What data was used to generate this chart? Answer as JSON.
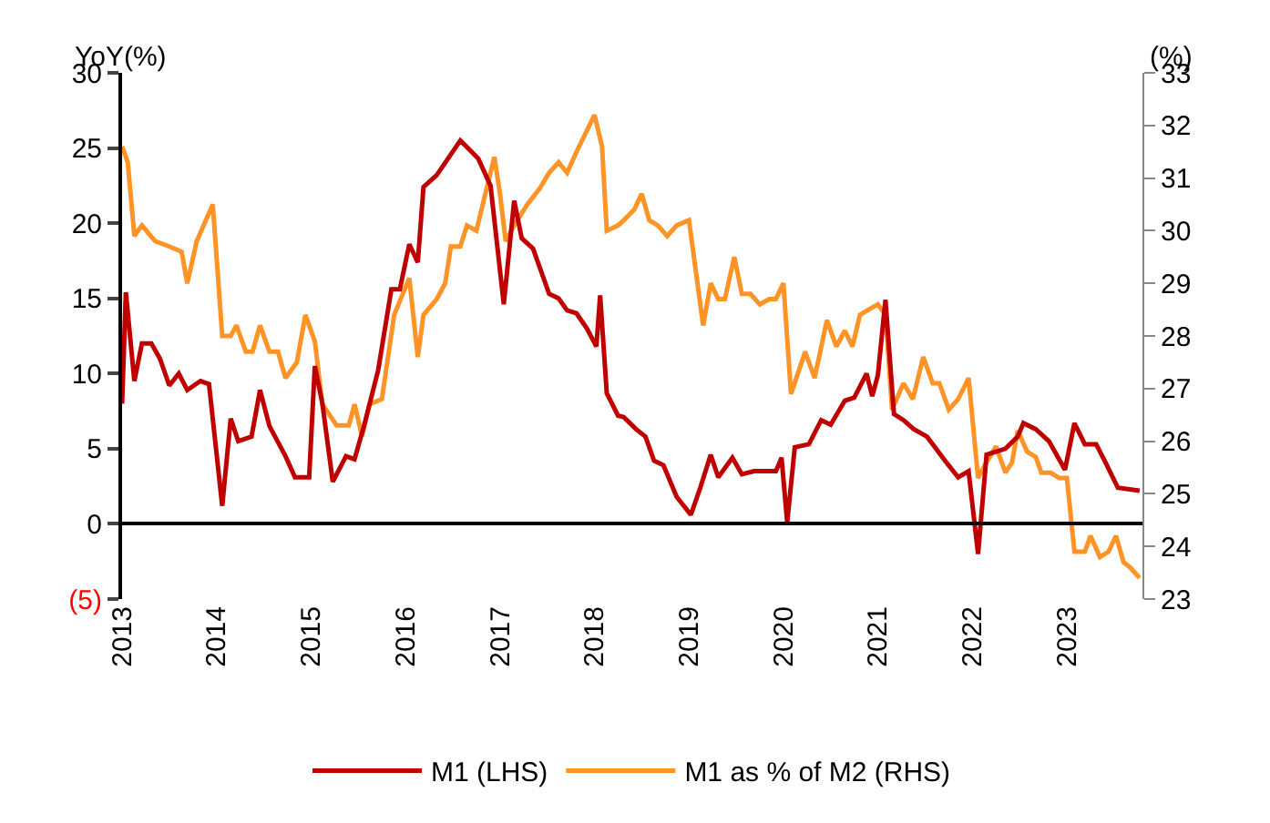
{
  "chart_data": {
    "type": "line",
    "ylabel": "YoY(%)",
    "y2label": "(%)",
    "xlim": [
      2013,
      2023.8
    ],
    "xticks": [
      2013,
      2014,
      2015,
      2016,
      2017,
      2018,
      2019,
      2020,
      2021,
      2022,
      2023
    ],
    "ylim": [
      -5,
      30
    ],
    "yticks": [
      {
        "value": -5,
        "label": "(5)"
      },
      0,
      5,
      10,
      15,
      20,
      25,
      30
    ],
    "y2lim": [
      23,
      33
    ],
    "y2ticks": [
      23,
      24,
      25,
      26,
      27,
      28,
      29,
      30,
      31,
      32,
      33
    ],
    "legend": "bottom",
    "marker": "none",
    "line_style": "solid",
    "series": [
      {
        "name": "M1 (LHS)",
        "color": "#c00000",
        "axis": "y",
        "x": [
          2013.0,
          2013.04,
          2013.13,
          2013.21,
          2013.31,
          2013.4,
          2013.5,
          2013.6,
          2013.69,
          2013.83,
          2013.92,
          2014.06,
          2014.15,
          2014.23,
          2014.37,
          2014.46,
          2014.56,
          2014.73,
          2014.83,
          2014.98,
          2015.04,
          2015.12,
          2015.23,
          2015.37,
          2015.46,
          2015.56,
          2015.71,
          2015.85,
          2015.94,
          2016.04,
          2016.13,
          2016.19,
          2016.33,
          2016.58,
          2016.77,
          2016.9,
          2017.04,
          2017.15,
          2017.23,
          2017.35,
          2017.52,
          2017.62,
          2017.71,
          2017.81,
          2017.92,
          2018.02,
          2018.06,
          2018.13,
          2018.25,
          2018.31,
          2018.44,
          2018.54,
          2018.63,
          2018.73,
          2018.87,
          2019.02,
          2019.12,
          2019.23,
          2019.31,
          2019.46,
          2019.56,
          2019.69,
          2019.92,
          2019.98,
          2020.04,
          2020.12,
          2020.27,
          2020.4,
          2020.5,
          2020.65,
          2020.75,
          2020.88,
          2020.94,
          2021.0,
          2021.08,
          2021.17,
          2021.27,
          2021.38,
          2021.52,
          2021.71,
          2021.85,
          2021.96,
          2022.06,
          2022.15,
          2022.35,
          2022.48,
          2022.54,
          2022.67,
          2022.81,
          2022.98,
          2023.08,
          2023.19,
          2023.31,
          2023.4,
          2023.54,
          2023.77
        ],
        "values": [
          8.0,
          15.4,
          9.5,
          12,
          12,
          11,
          9.2,
          10,
          8.9,
          9.5,
          9.3,
          1.2,
          7.0,
          5.5,
          5.8,
          8.9,
          6.5,
          4.5,
          3.1,
          3.1,
          10.5,
          8,
          2.8,
          4.5,
          4.3,
          6.5,
          10.2,
          15.6,
          15.6,
          18.6,
          17.4,
          22.4,
          23.2,
          25.5,
          24.3,
          22.5,
          14.6,
          21.5,
          19,
          18.3,
          15.3,
          15,
          14.2,
          14,
          13,
          11.8,
          15.2,
          8.7,
          7.2,
          7.1,
          6.3,
          5.8,
          4.2,
          3.9,
          1.8,
          0.6,
          2.4,
          4.6,
          3.1,
          4.4,
          3.3,
          3.5,
          3.5,
          4.4,
          0.1,
          5.1,
          5.3,
          6.9,
          6.6,
          8.2,
          8.4,
          10,
          8.5,
          9.9,
          14.9,
          7.3,
          6.9,
          6.3,
          5.8,
          4.2,
          3.1,
          3.5,
          -2,
          4.6,
          5,
          5.8,
          6.7,
          6.3,
          5.5,
          3.6,
          6.7,
          5.3,
          5.3,
          4.2,
          2.4,
          2.2
        ]
      },
      {
        "name": "M1 as % of M2 (RHS)",
        "color": "#ff9326",
        "axis": "y2",
        "x": [
          2013.0,
          2013.06,
          2013.13,
          2013.21,
          2013.35,
          2013.5,
          2013.63,
          2013.69,
          2013.79,
          2013.96,
          2014.06,
          2014.15,
          2014.21,
          2014.31,
          2014.38,
          2014.46,
          2014.56,
          2014.65,
          2014.73,
          2014.85,
          2014.94,
          2015.04,
          2015.12,
          2015.27,
          2015.4,
          2015.46,
          2015.54,
          2015.62,
          2015.75,
          2015.88,
          2016.04,
          2016.13,
          2016.19,
          2016.33,
          2016.42,
          2016.48,
          2016.58,
          2016.65,
          2016.75,
          2016.94,
          2017.0,
          2017.06,
          2017.15,
          2017.29,
          2017.42,
          2017.52,
          2017.62,
          2017.71,
          2017.81,
          2018.0,
          2018.08,
          2018.13,
          2018.25,
          2018.31,
          2018.42,
          2018.5,
          2018.58,
          2018.67,
          2018.77,
          2018.87,
          2019.0,
          2019.15,
          2019.23,
          2019.31,
          2019.38,
          2019.48,
          2019.56,
          2019.65,
          2019.75,
          2019.85,
          2019.92,
          2020.0,
          2020.08,
          2020.23,
          2020.33,
          2020.46,
          2020.56,
          2020.65,
          2020.73,
          2020.81,
          2020.9,
          2021.0,
          2021.08,
          2021.15,
          2021.27,
          2021.37,
          2021.48,
          2021.58,
          2021.65,
          2021.75,
          2021.85,
          2021.96,
          2022.06,
          2022.15,
          2022.25,
          2022.35,
          2022.42,
          2022.48,
          2022.58,
          2022.67,
          2022.73,
          2022.83,
          2022.92,
          2023.0,
          2023.08,
          2023.19,
          2023.25,
          2023.35,
          2023.44,
          2023.52,
          2023.6,
          2023.67,
          2023.77
        ],
        "values": [
          31.6,
          31.3,
          29.9,
          30.1,
          29.8,
          29.7,
          29.6,
          29.0,
          29.8,
          30.5,
          28.0,
          28.0,
          28.2,
          27.7,
          27.7,
          28.2,
          27.7,
          27.7,
          27.2,
          27.5,
          28.4,
          27.9,
          26.7,
          26.3,
          26.3,
          26.7,
          26.1,
          26.7,
          26.8,
          28.4,
          29.1,
          27.6,
          28.4,
          28.7,
          29.0,
          29.7,
          29.7,
          30.1,
          30.0,
          31.4,
          30.7,
          29.8,
          30.1,
          30.5,
          30.8,
          31.1,
          31.3,
          31.1,
          31.5,
          32.2,
          31.6,
          30.0,
          30.1,
          30.2,
          30.4,
          30.7,
          30.2,
          30.1,
          29.9,
          30.1,
          30.2,
          28.2,
          29.0,
          28.7,
          28.7,
          29.5,
          28.8,
          28.8,
          28.6,
          28.7,
          28.7,
          29.0,
          26.9,
          27.7,
          27.2,
          28.3,
          27.8,
          28.1,
          27.8,
          28.4,
          28.5,
          28.6,
          28.4,
          26.6,
          27.1,
          26.8,
          27.6,
          27.1,
          27.1,
          26.6,
          26.8,
          27.2,
          25.3,
          25.6,
          25.9,
          25.4,
          25.6,
          26.2,
          25.8,
          25.7,
          25.4,
          25.4,
          25.3,
          25.3,
          23.9,
          23.9,
          24.2,
          23.8,
          23.9,
          24.2,
          23.7,
          23.6,
          23.4
        ]
      }
    ]
  }
}
